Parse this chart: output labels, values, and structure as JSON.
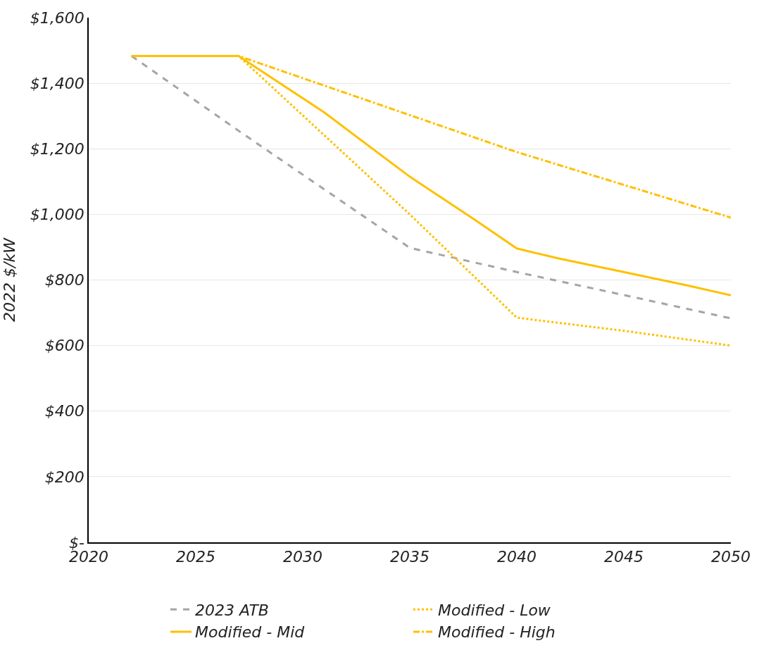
{
  "chart_data": {
    "type": "line",
    "ylabel": "2022 $/kW",
    "xlim": [
      2020,
      2050
    ],
    "xticks": [
      2020,
      2025,
      2030,
      2035,
      2040,
      2045,
      2050
    ],
    "ylim": [
      0,
      1600
    ],
    "yticks": [
      {
        "value": 0,
        "label": "$-"
      },
      {
        "value": 200,
        "label": "$200"
      },
      {
        "value": 400,
        "label": "$400"
      },
      {
        "value": 600,
        "label": "$600"
      },
      {
        "value": 800,
        "label": "$800"
      },
      {
        "value": 1000,
        "label": "$1,000"
      },
      {
        "value": 1200,
        "label": "$1,200"
      },
      {
        "value": 1400,
        "label": "$1,400"
      },
      {
        "value": 1600,
        "label": "$1,600"
      }
    ],
    "grid": "y",
    "legend": "bottom",
    "marker": "none",
    "series": [
      {
        "name": "2023 ATB",
        "color": "#a5a5a5",
        "line_style": "dashed",
        "x": [
          2022,
          2027,
          2035,
          2040,
          2045,
          2050
        ],
        "values": [
          1483,
          1255,
          898,
          824,
          754,
          683
        ]
      },
      {
        "name": "Modified - Low",
        "color": "#ffc000",
        "line_style": "dotted",
        "x": [
          2022,
          2027,
          2035,
          2040,
          2045,
          2050
        ],
        "values": [
          1483,
          1483,
          1000,
          685,
          645,
          600
        ]
      },
      {
        "name": "Modified - Mid",
        "color": "#ffc000",
        "line_style": "solid",
        "x": [
          2022,
          2027,
          2031,
          2035,
          2038,
          2040,
          2042,
          2045,
          2048,
          2050
        ],
        "values": [
          1483,
          1483,
          1311,
          1115,
          985,
          896,
          865,
          824,
          783,
          753
        ]
      },
      {
        "name": "Modified - High",
        "color": "#ffc000",
        "line_style": "dashdot",
        "x": [
          2022,
          2027,
          2040,
          2050
        ],
        "values": [
          1483,
          1483,
          1190,
          990
        ]
      }
    ]
  }
}
